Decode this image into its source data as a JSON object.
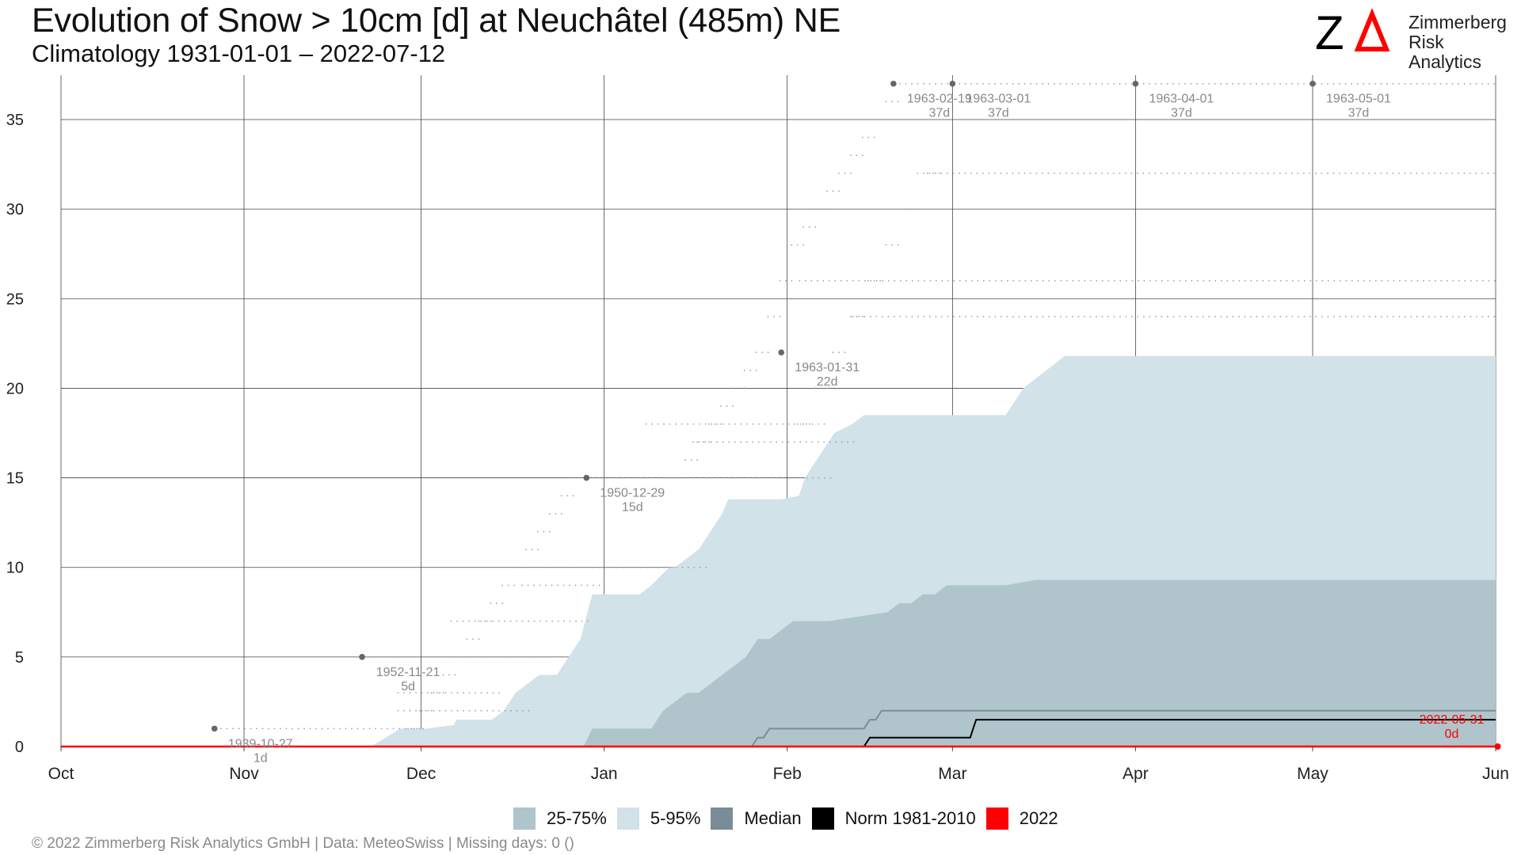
{
  "title": "Evolution of Snow > 10cm [d] at Neuchâtel (485m) NE",
  "subtitle": "Climatology 1931-01-01 – 2022-07-12",
  "logo": {
    "line1": "Zimmerberg",
    "line2": "Risk Analytics",
    "mark": "ZΔ",
    "mark_colors": [
      "#000000",
      "#ff0000"
    ]
  },
  "footer": "©  2022 Zimmerberg Risk Analytics GmbH | Data: MeteoSwiss | Missing days: 0 ()",
  "legend": [
    {
      "label": "25-75%",
      "color": "#b0c4cb"
    },
    {
      "label": "5-95%",
      "color": "#d1e2e8"
    },
    {
      "label": "Median",
      "color": "#7a8d96"
    },
    {
      "label": "Norm 1981-2010",
      "color": "#000000"
    },
    {
      "label": "2022",
      "color": "#ff0000"
    }
  ],
  "chart_data": {
    "type": "area",
    "title": "Evolution of Snow > 10cm [d] at Neuchâtel (485m) NE",
    "xlabel": "",
    "ylabel": "",
    "x_ticks": [
      "Oct",
      "Nov",
      "Dec",
      "Jan",
      "Feb",
      "Mar",
      "Apr",
      "May",
      "Jun"
    ],
    "x_tick_days": [
      0,
      31,
      61,
      92,
      123,
      151,
      182,
      212,
      243
    ],
    "xlim_days": [
      0,
      243
    ],
    "x_unit": "days since Oct 1",
    "ylim": [
      0,
      37
    ],
    "y_ticks": [
      0,
      5,
      10,
      15,
      20,
      25,
      30,
      35
    ],
    "grid": true,
    "legend_position": "bottom",
    "series": [
      {
        "name": "5-95%",
        "kind": "band",
        "x": [
          52.5,
          55,
          57.5,
          62,
          66.5,
          67,
          73,
          75,
          77,
          79,
          81,
          82,
          84,
          86,
          88,
          90,
          92,
          94,
          95,
          98,
          100,
          103,
          104,
          106,
          108,
          110,
          112,
          113,
          116,
          120,
          122,
          125,
          126,
          128,
          130,
          131,
          134,
          136,
          150,
          153,
          156,
          160,
          163,
          170,
          200,
          230,
          243
        ],
        "lower": [
          0,
          0,
          0,
          0,
          0,
          0,
          0,
          0,
          0,
          0,
          0,
          0,
          0,
          0,
          0,
          0,
          0,
          0,
          0,
          0,
          0,
          0,
          0,
          0,
          0,
          0,
          0,
          0,
          0,
          0,
          0,
          0,
          0,
          0,
          0,
          0,
          0,
          0,
          0,
          0,
          0,
          0,
          0,
          0,
          0,
          0,
          0
        ],
        "upper": [
          0,
          0.5,
          1,
          1,
          1.2,
          1.5,
          1.5,
          2,
          3,
          3.5,
          4,
          4,
          4,
          5,
          6,
          8.5,
          8.5,
          8.5,
          8.5,
          8.5,
          9,
          10,
          10,
          10.5,
          11,
          12,
          13,
          13.8,
          13.8,
          13.8,
          13.8,
          14,
          15,
          16,
          17,
          17.5,
          18,
          18.5,
          18.5,
          18.5,
          18.5,
          18.5,
          20,
          21.8,
          21.8,
          21.8,
          21.8
        ]
      },
      {
        "name": "25-75%",
        "kind": "band",
        "x": [
          88.5,
          90,
          92,
          94,
          100,
          101,
          102,
          104,
          106,
          108,
          110,
          112,
          114,
          116,
          118,
          120,
          122,
          124,
          126,
          130,
          140,
          142,
          144,
          146,
          148,
          150,
          152,
          156,
          160,
          165,
          200,
          243
        ],
        "lower": [
          0,
          0,
          0,
          0,
          0,
          0,
          0,
          0,
          0,
          0,
          0,
          0,
          0,
          0,
          0,
          0,
          0,
          0,
          0,
          0,
          0,
          0,
          0,
          0,
          0,
          0,
          0,
          0,
          0,
          0,
          0,
          0
        ],
        "upper": [
          0,
          1,
          1,
          1,
          1,
          1.5,
          2,
          2.5,
          3,
          3,
          3.5,
          4,
          4.5,
          5,
          6,
          6,
          6.5,
          7,
          7,
          7,
          7.5,
          8,
          8,
          8.5,
          8.5,
          9,
          9,
          9,
          9,
          9.3,
          9.3,
          9.3
        ]
      },
      {
        "name": "Median",
        "kind": "line",
        "color": "#7a8d96",
        "x": [
          0,
          117,
          118,
          119,
          120,
          122,
          130,
          136,
          137,
          138,
          139,
          141,
          243
        ],
        "y": [
          0,
          0,
          0.5,
          0.5,
          1,
          1,
          1,
          1,
          1.5,
          1.5,
          2,
          2,
          2
        ]
      },
      {
        "name": "Norm 1981-2010",
        "kind": "line",
        "color": "#000000",
        "x": [
          0,
          136,
          137,
          154,
          155,
          156,
          243
        ],
        "y": [
          0,
          0,
          0.5,
          0.5,
          1.5,
          1.5,
          1.5
        ]
      },
      {
        "name": "2022",
        "kind": "line",
        "color": "#ff0000",
        "x": [
          0,
          243
        ],
        "y": [
          0,
          0
        ]
      }
    ],
    "record_markers": [
      {
        "x": 26,
        "y": 1,
        "label_date": "1939-10-27",
        "label_value": "1d"
      },
      {
        "x": 51,
        "y": 5,
        "label_date": "1952-11-21",
        "label_value": "5d"
      },
      {
        "x": 89,
        "y": 15,
        "label_date": "1950-12-29",
        "label_value": "15d"
      },
      {
        "x": 122,
        "y": 22,
        "label_date": "1963-01-31",
        "label_value": "22d"
      },
      {
        "x": 141,
        "y": 37,
        "label_date": "1963-02-19",
        "label_value": "37d"
      },
      {
        "x": 151,
        "y": 37,
        "label_date": "1963-03-01",
        "label_value": "37d"
      },
      {
        "x": 182,
        "y": 37,
        "label_date": "1963-04-01",
        "label_value": "37d"
      },
      {
        "x": 212,
        "y": 37,
        "label_date": "1963-05-01",
        "label_value": "37d"
      }
    ],
    "current_marker": {
      "x": 242,
      "y": 0,
      "label_date": "2022-05-31",
      "label_value": "0d",
      "color": "#ff0000"
    },
    "record_trails": [
      {
        "x": [
          26,
          62
        ],
        "y": [
          1,
          1
        ]
      },
      {
        "x": [
          51,
          83
        ],
        "y": [
          5,
          5
        ]
      },
      {
        "x": [
          89,
          131
        ],
        "y": [
          15,
          15
        ]
      },
      {
        "x": [
          141,
          243
        ],
        "y": [
          37,
          37
        ]
      },
      {
        "x": [
          145,
          243
        ],
        "y": [
          32,
          32
        ]
      },
      {
        "x": [
          125,
          243
        ],
        "y": [
          26,
          26
        ]
      },
      {
        "x": [
          134,
          243
        ],
        "y": [
          24,
          24
        ]
      },
      {
        "x": [
          99,
          130
        ],
        "y": [
          18,
          18
        ]
      },
      {
        "x": [
          107,
          135
        ],
        "y": [
          17,
          17
        ]
      },
      {
        "x": [
          82,
          110
        ],
        "y": [
          10,
          10
        ]
      },
      {
        "x": [
          78,
          92
        ],
        "y": [
          9,
          9
        ]
      },
      {
        "x": [
          66,
          90
        ],
        "y": [
          7,
          7
        ]
      },
      {
        "x": [
          57,
          80
        ],
        "y": [
          2,
          2
        ]
      },
      {
        "x": [
          57,
          75
        ],
        "y": [
          3,
          3
        ]
      }
    ],
    "record_steps": [
      {
        "x": [
          104,
          107,
          109,
          111,
          113,
          115,
          117,
          119,
          121,
          123,
          125,
          127,
          129,
          131,
          133,
          135,
          137,
          139,
          141
        ],
        "y": [
          15,
          16,
          17,
          18,
          19,
          20,
          21,
          22,
          24,
          26,
          28,
          29,
          30,
          31,
          32,
          33,
          34,
          35,
          36
        ]
      },
      {
        "x": [
          148,
          144,
          141,
          138,
          135,
          132,
          129,
          126
        ],
        "y": [
          32,
          30,
          28,
          26,
          24,
          22,
          20,
          18
        ]
      },
      {
        "x": [
          60,
          62,
          64,
          66,
          68,
          70,
          72,
          74,
          76,
          78,
          80,
          82,
          84,
          86,
          88
        ],
        "y": [
          1,
          2,
          3,
          4,
          5,
          6,
          7,
          8,
          9,
          10,
          11,
          12,
          13,
          14,
          15
        ]
      }
    ]
  }
}
